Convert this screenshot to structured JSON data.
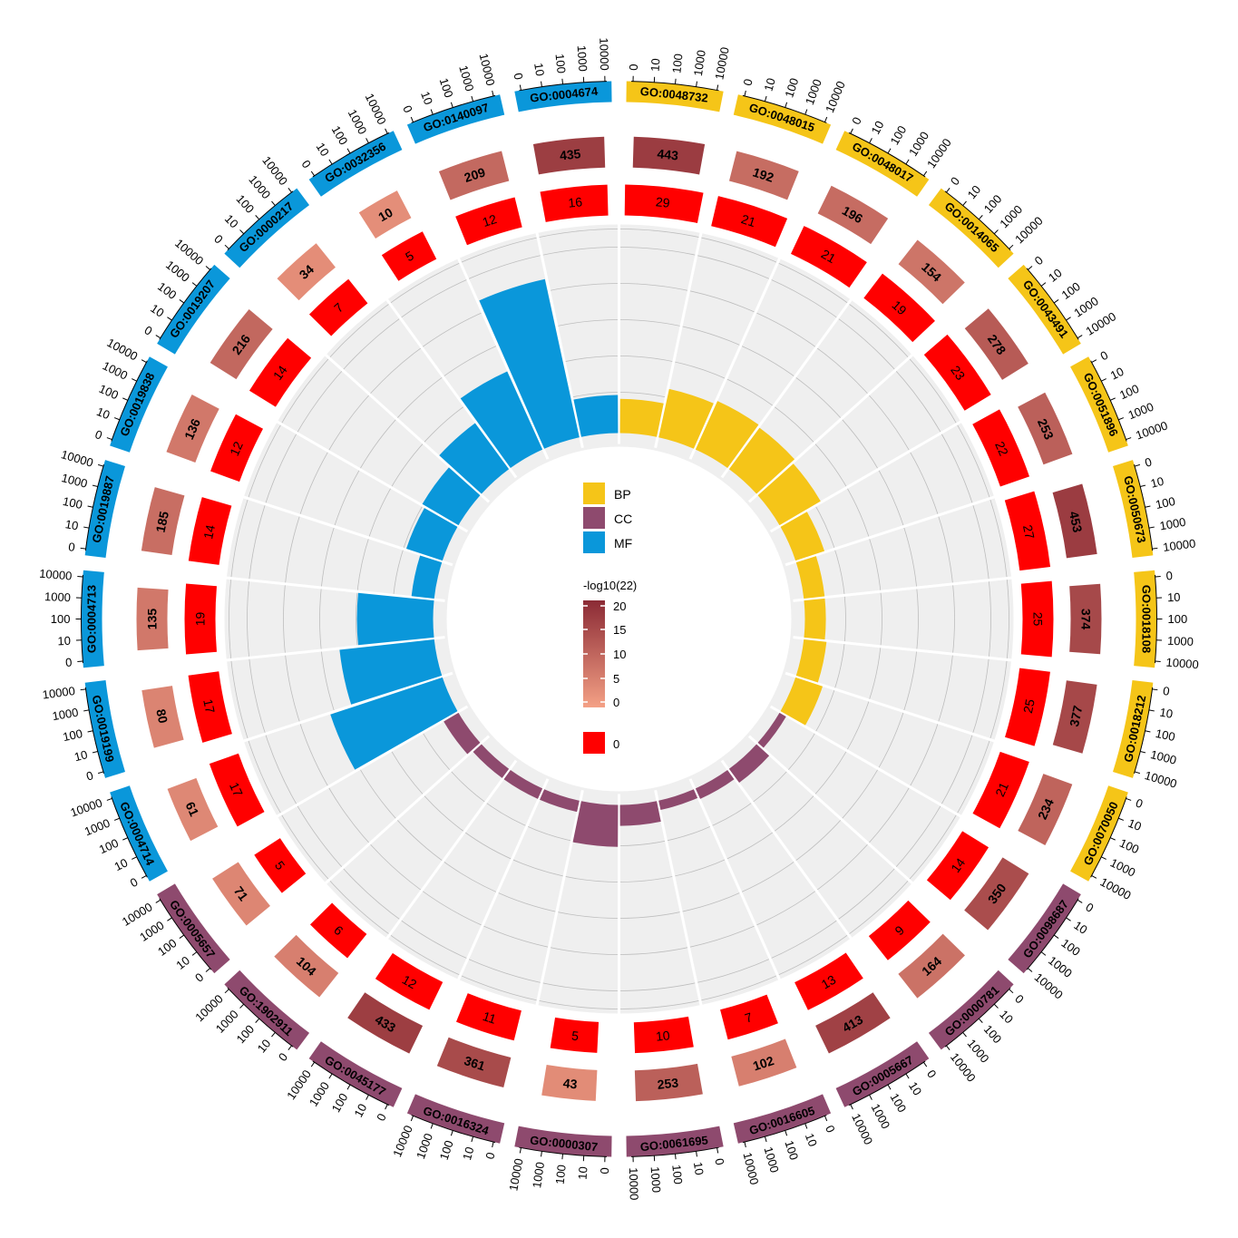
{
  "chart_data": {
    "type": "circular",
    "colors": {
      "BP": "#F5C518",
      "CC": "#8E4A6E",
      "MF": "#0A97DA",
      "sig_red": "#FF0000",
      "grad_low": "#F4A085",
      "grad_high": "#8B2A35",
      "background_track": "#EFEFEF"
    },
    "ring_ticks": [
      "0",
      "10",
      "100",
      "1000",
      "10000"
    ],
    "terms": [
      {
        "id": "GO:0048732",
        "category": "BP",
        "total": 443,
        "sig": 29,
        "bar": 0.18
      },
      {
        "id": "GO:0048015",
        "category": "BP",
        "total": 192,
        "sig": 21,
        "bar": 0.26
      },
      {
        "id": "GO:0048017",
        "category": "BP",
        "total": 196,
        "sig": 21,
        "bar": 0.28
      },
      {
        "id": "GO:0014065",
        "category": "BP",
        "total": 154,
        "sig": 19,
        "bar": 0.27
      },
      {
        "id": "GO:0043491",
        "category": "BP",
        "total": 278,
        "sig": 23,
        "bar": 0.25
      },
      {
        "id": "GO:0051896",
        "category": "BP",
        "total": 253,
        "sig": 22,
        "bar": 0.16
      },
      {
        "id": "GO:0050673",
        "category": "BP",
        "total": 453,
        "sig": 27,
        "bar": 0.11
      },
      {
        "id": "GO:0018108",
        "category": "BP",
        "total": 374,
        "sig": 25,
        "bar": 0.11
      },
      {
        "id": "GO:0018212",
        "category": "BP",
        "total": 377,
        "sig": 25,
        "bar": 0.12
      },
      {
        "id": "GO:0070050",
        "category": "BP",
        "total": 234,
        "sig": 21,
        "bar": 0.15
      },
      {
        "id": "GO:0098687",
        "category": "CC",
        "total": 350,
        "sig": 14,
        "bar": 0.04
      },
      {
        "id": "GO:0000781",
        "category": "CC",
        "total": 164,
        "sig": 9,
        "bar": 0.09
      },
      {
        "id": "GO:0005667",
        "category": "CC",
        "total": 413,
        "sig": 13,
        "bar": 0.06
      },
      {
        "id": "GO:0016605",
        "category": "CC",
        "total": 102,
        "sig": 7,
        "bar": 0.05
      },
      {
        "id": "GO:0061695",
        "category": "CC",
        "total": 253,
        "sig": 10,
        "bar": 0.11
      },
      {
        "id": "GO:0000307",
        "category": "CC",
        "total": 43,
        "sig": 5,
        "bar": 0.22
      },
      {
        "id": "GO:0016324",
        "category": "CC",
        "total": 361,
        "sig": 11,
        "bar": 0.06
      },
      {
        "id": "GO:0045177",
        "category": "CC",
        "total": 433,
        "sig": 12,
        "bar": 0.06
      },
      {
        "id": "GO:1902911",
        "category": "CC",
        "total": 104,
        "sig": 6,
        "bar": 0.06
      },
      {
        "id": "GO:0005657",
        "category": "CC",
        "total": 71,
        "sig": 5,
        "bar": 0.09
      },
      {
        "id": "GO:0004714",
        "category": "MF",
        "total": 61,
        "sig": 17,
        "bar": 0.62
      },
      {
        "id": "GO:0019199",
        "category": "MF",
        "total": 80,
        "sig": 17,
        "bar": 0.5
      },
      {
        "id": "GO:0004713",
        "category": "MF",
        "total": 135,
        "sig": 19,
        "bar": 0.4
      },
      {
        "id": "GO:0019887",
        "category": "MF",
        "total": 185,
        "sig": 14,
        "bar": 0.12
      },
      {
        "id": "GO:0019838",
        "category": "MF",
        "total": 136,
        "sig": 12,
        "bar": 0.2
      },
      {
        "id": "GO:0019207",
        "category": "MF",
        "total": 216,
        "sig": 14,
        "bar": 0.22
      },
      {
        "id": "GO:0000217",
        "category": "MF",
        "total": 34,
        "sig": 7,
        "bar": 0.3
      },
      {
        "id": "GO:0032356",
        "category": "MF",
        "total": 10,
        "sig": 5,
        "bar": 0.45
      },
      {
        "id": "GO:0140097",
        "category": "MF",
        "total": 209,
        "sig": 12,
        "bar": 0.85
      },
      {
        "id": "GO:0004674",
        "category": "MF",
        "total": 435,
        "sig": 16,
        "bar": 0.2
      }
    ],
    "legend": {
      "categories": [
        "BP",
        "CC",
        "MF"
      ],
      "gradient_title": "-log10(22)",
      "gradient_ticks": [
        "20",
        "15",
        "10",
        "5",
        "0"
      ],
      "zero_label": "0"
    }
  }
}
